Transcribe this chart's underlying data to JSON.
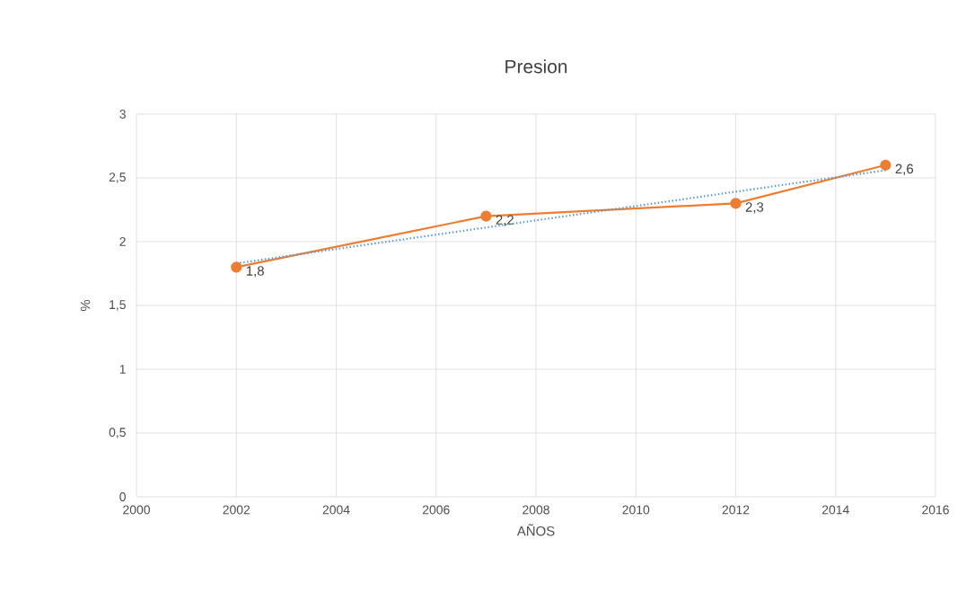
{
  "chart_data": {
    "type": "line",
    "title": "Presion",
    "xlabel": "AÑOS",
    "ylabel": "%",
    "x": [
      2002,
      2007,
      2012,
      2015
    ],
    "xlim": [
      2000,
      2016
    ],
    "xticks": [
      2000,
      2002,
      2004,
      2006,
      2008,
      2010,
      2012,
      2014,
      2016
    ],
    "ylim": [
      0,
      3
    ],
    "yticks": [
      0,
      {
        "value": 0.5,
        "label": "0,5"
      },
      1,
      {
        "value": 1.5,
        "label": "1,5"
      },
      2,
      {
        "value": 2.5,
        "label": "2,5"
      },
      3
    ],
    "grid": true,
    "series": [
      {
        "color": "#ed7d31",
        "values": [
          1.8,
          2.2,
          2.3,
          2.6
        ],
        "marker": "circle",
        "line_style": "solid",
        "value_labels": [
          "1,8",
          "2,2",
          "2,3",
          "2,6"
        ]
      },
      {
        "type": "line",
        "x": [
          2002,
          2015
        ],
        "values": [
          1.83,
          2.56
        ],
        "color": "#5b9bd5",
        "line_style": "dotted",
        "marker": "none"
      }
    ]
  }
}
